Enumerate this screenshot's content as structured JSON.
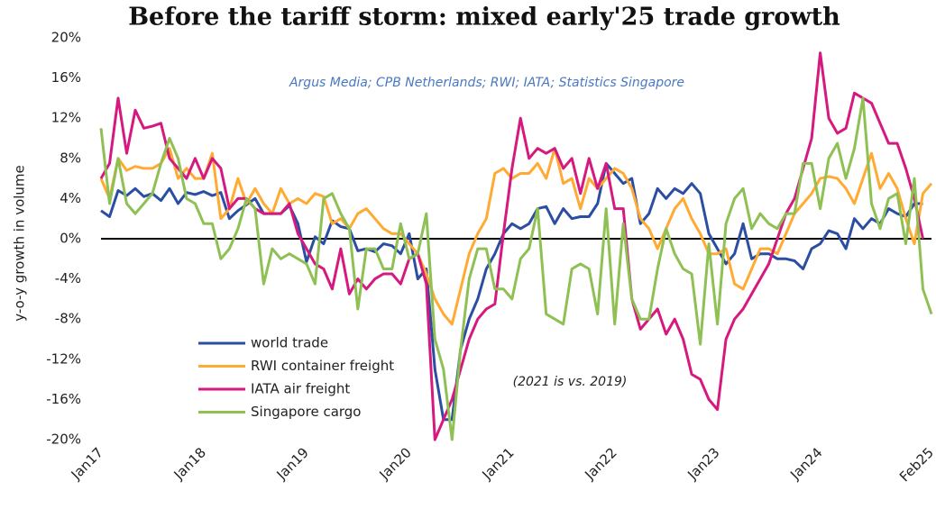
{
  "chart_data": {
    "type": "line",
    "title": "Before the tariff storm: mixed early'25 trade growth",
    "subtitle": "Argus Media; CPB Netherlands; RWI; IATA; Statistics Singapore",
    "annotation": "(2021 is vs. 2019)",
    "y_label": "y-o-y growth in volume",
    "legend": "lower left",
    "categories": [
      "Jan17",
      null,
      null,
      null,
      null,
      null,
      null,
      null,
      null,
      null,
      null,
      null,
      "Jan18",
      null,
      null,
      null,
      null,
      null,
      null,
      null,
      null,
      null,
      null,
      null,
      "Jan19",
      null,
      null,
      null,
      null,
      null,
      null,
      null,
      null,
      null,
      null,
      null,
      "Jan20",
      null,
      null,
      null,
      null,
      null,
      null,
      null,
      null,
      null,
      null,
      null,
      "Jan21",
      null,
      null,
      null,
      null,
      null,
      null,
      null,
      null,
      null,
      null,
      null,
      "Jan22",
      null,
      null,
      null,
      null,
      null,
      null,
      null,
      null,
      null,
      null,
      null,
      "Jan23",
      null,
      null,
      null,
      null,
      null,
      null,
      null,
      null,
      null,
      null,
      null,
      "Jan24",
      null,
      null,
      null,
      null,
      null,
      null,
      null,
      null,
      null,
      null,
      null,
      null,
      "Feb25"
    ],
    "ylim": [
      -20,
      20
    ],
    "yticks": [
      {
        "value": -20,
        "label": "-20%"
      },
      {
        "value": -16,
        "label": "-16%"
      },
      {
        "value": -12,
        "label": "-12%"
      },
      {
        "value": -8,
        "label": "-8%"
      },
      {
        "value": -4,
        "label": "-4%"
      },
      {
        "value": 0,
        "label": "0%"
      },
      {
        "value": 4,
        "label": "4%"
      },
      {
        "value": 8,
        "label": "8%"
      },
      {
        "value": 12,
        "label": "12%"
      },
      {
        "value": 16,
        "label": "16%"
      },
      {
        "value": 20,
        "label": "20%"
      }
    ],
    "series": [
      {
        "name": "world trade",
        "color": "#2b4ea2",
        "values": [
          2.8,
          2.2,
          4.8,
          4.3,
          5.0,
          4.2,
          4.5,
          3.8,
          5.0,
          3.5,
          4.6,
          4.4,
          4.7,
          4.3,
          4.6,
          2.0,
          2.8,
          3.4,
          4.0,
          2.5,
          2.5,
          2.5,
          3.3,
          1.5,
          -2.3,
          0.2,
          -0.5,
          1.8,
          1.2,
          1.0,
          -1.2,
          -1.0,
          -1.3,
          -0.5,
          -0.7,
          -1.5,
          0.5,
          -4.0,
          -3.0,
          -13.0,
          -18.0,
          -18.0,
          -11.0,
          -8.0,
          -6.0,
          -3.0,
          -1.5,
          0.5,
          1.5,
          1.0,
          1.5,
          3.0,
          3.2,
          1.5,
          3.0,
          2.0,
          2.2,
          2.2,
          3.5,
          7.5,
          6.5,
          5.5,
          6.0,
          1.5,
          2.5,
          5.0,
          4.0,
          5.0,
          4.5,
          5.5,
          4.5,
          0.5,
          -1.0,
          -2.5,
          -1.5,
          1.5,
          -2.0,
          -1.5,
          -1.5,
          -2.0,
          -2.0,
          -2.2,
          -3.0,
          -1.0,
          -0.5,
          0.8,
          0.5,
          -1.0,
          2.0,
          1.0,
          2.0,
          1.5,
          3.0,
          2.5,
          2.2,
          3.5,
          3.5,
          null
        ]
      },
      {
        "name": "RWI container freight",
        "color": "#ffaa33",
        "values": [
          6.0,
          4.0,
          8.0,
          6.8,
          7.2,
          7.0,
          7.0,
          7.5,
          9.0,
          6.0,
          7.0,
          6.0,
          6.0,
          8.5,
          2.0,
          3.0,
          6.0,
          3.5,
          5.0,
          3.5,
          2.5,
          5.0,
          3.5,
          4.0,
          3.5,
          4.5,
          4.2,
          1.5,
          2.0,
          1.0,
          2.5,
          3.0,
          2.0,
          1.0,
          0.5,
          0.5,
          -0.5,
          -1.5,
          -3.5,
          -6.0,
          -7.5,
          -8.5,
          -5.0,
          -1.5,
          0.5,
          2.0,
          6.5,
          7.0,
          6.0,
          6.5,
          6.5,
          7.5,
          6.0,
          9.0,
          5.5,
          6.0,
          3.0,
          6.0,
          5.0,
          6.0,
          7.0,
          6.5,
          5.0,
          2.0,
          1.0,
          -1.0,
          1.0,
          3.0,
          4.0,
          2.0,
          0.5,
          -1.5,
          -1.5,
          -1.0,
          -4.5,
          -5.0,
          -3.0,
          -1.0,
          -1.0,
          -1.5,
          0.5,
          2.5,
          3.5,
          4.5,
          6.0,
          6.2,
          6.0,
          5.0,
          3.5,
          6.0,
          8.5,
          5.0,
          6.5,
          5.0,
          2.0,
          -0.5,
          4.5,
          5.5
        ]
      },
      {
        "name": "IATA air freight",
        "color": "#d6197f",
        "values": [
          6.0,
          7.5,
          14.0,
          8.5,
          12.8,
          11.0,
          11.2,
          11.5,
          8.0,
          7.0,
          6.0,
          8.0,
          6.0,
          8.0,
          7.0,
          3.0,
          4.0,
          4.0,
          3.0,
          2.5,
          2.5,
          2.5,
          3.5,
          0.5,
          -1.0,
          -2.5,
          -3.0,
          -5.0,
          -1.0,
          -5.5,
          -4.0,
          -5.0,
          -4.0,
          -3.5,
          -3.5,
          -4.5,
          -2.0,
          -1.5,
          -4.5,
          -20.0,
          -18.0,
          -16.0,
          -13.0,
          -10.0,
          -8.0,
          -7.0,
          -6.5,
          0.5,
          7.0,
          12.0,
          8.0,
          9.0,
          8.5,
          9.0,
          7.0,
          8.0,
          4.5,
          8.0,
          5.0,
          7.5,
          3.0,
          3.0,
          -6.0,
          -9.0,
          -8.0,
          -7.0,
          -9.5,
          -8.0,
          -10.0,
          -13.5,
          -14.0,
          -16.0,
          -17.0,
          -10.0,
          -8.0,
          -7.0,
          -5.5,
          -4.0,
          -2.5,
          0.0,
          2.5,
          4.0,
          7.0,
          10.0,
          18.5,
          12.0,
          10.5,
          11.0,
          14.5,
          14.0,
          13.5,
          11.5,
          9.5,
          9.5,
          7.0,
          4.0,
          0.0,
          null
        ]
      },
      {
        "name": "Singapore cargo",
        "color": "#8fc054",
        "values": [
          11.0,
          3.5,
          8.0,
          3.5,
          2.5,
          3.5,
          4.5,
          7.5,
          10.0,
          8.0,
          4.0,
          3.5,
          1.5,
          1.5,
          -2.0,
          -1.0,
          1.0,
          4.0,
          3.0,
          -4.5,
          -1.0,
          -2.0,
          -1.5,
          -2.0,
          -2.5,
          -4.5,
          4.0,
          4.5,
          2.5,
          1.0,
          -7.0,
          -1.0,
          -1.0,
          -3.0,
          -3.0,
          1.5,
          -2.0,
          -1.5,
          2.5,
          -10.0,
          -13.0,
          -20.0,
          -11.0,
          -4.0,
          -1.0,
          -1.0,
          -5.0,
          -5.0,
          -6.0,
          -2.0,
          -1.0,
          3.0,
          -7.5,
          -8.0,
          -8.5,
          -3.0,
          -2.5,
          -3.0,
          -7.5,
          3.0,
          -8.5,
          1.5,
          -6.0,
          -8.0,
          -8.0,
          -3.0,
          1.0,
          -1.5,
          -3.0,
          -3.5,
          -10.5,
          -0.5,
          -8.5,
          1.5,
          4.0,
          5.0,
          1.0,
          2.5,
          1.5,
          1.0,
          2.5,
          2.5,
          7.5,
          7.5,
          3.0,
          8.0,
          9.5,
          6.0,
          9.0,
          14.0,
          3.5,
          1.0,
          4.0,
          4.5,
          -0.5,
          6.0,
          -5.0,
          -7.5
        ]
      }
    ]
  }
}
